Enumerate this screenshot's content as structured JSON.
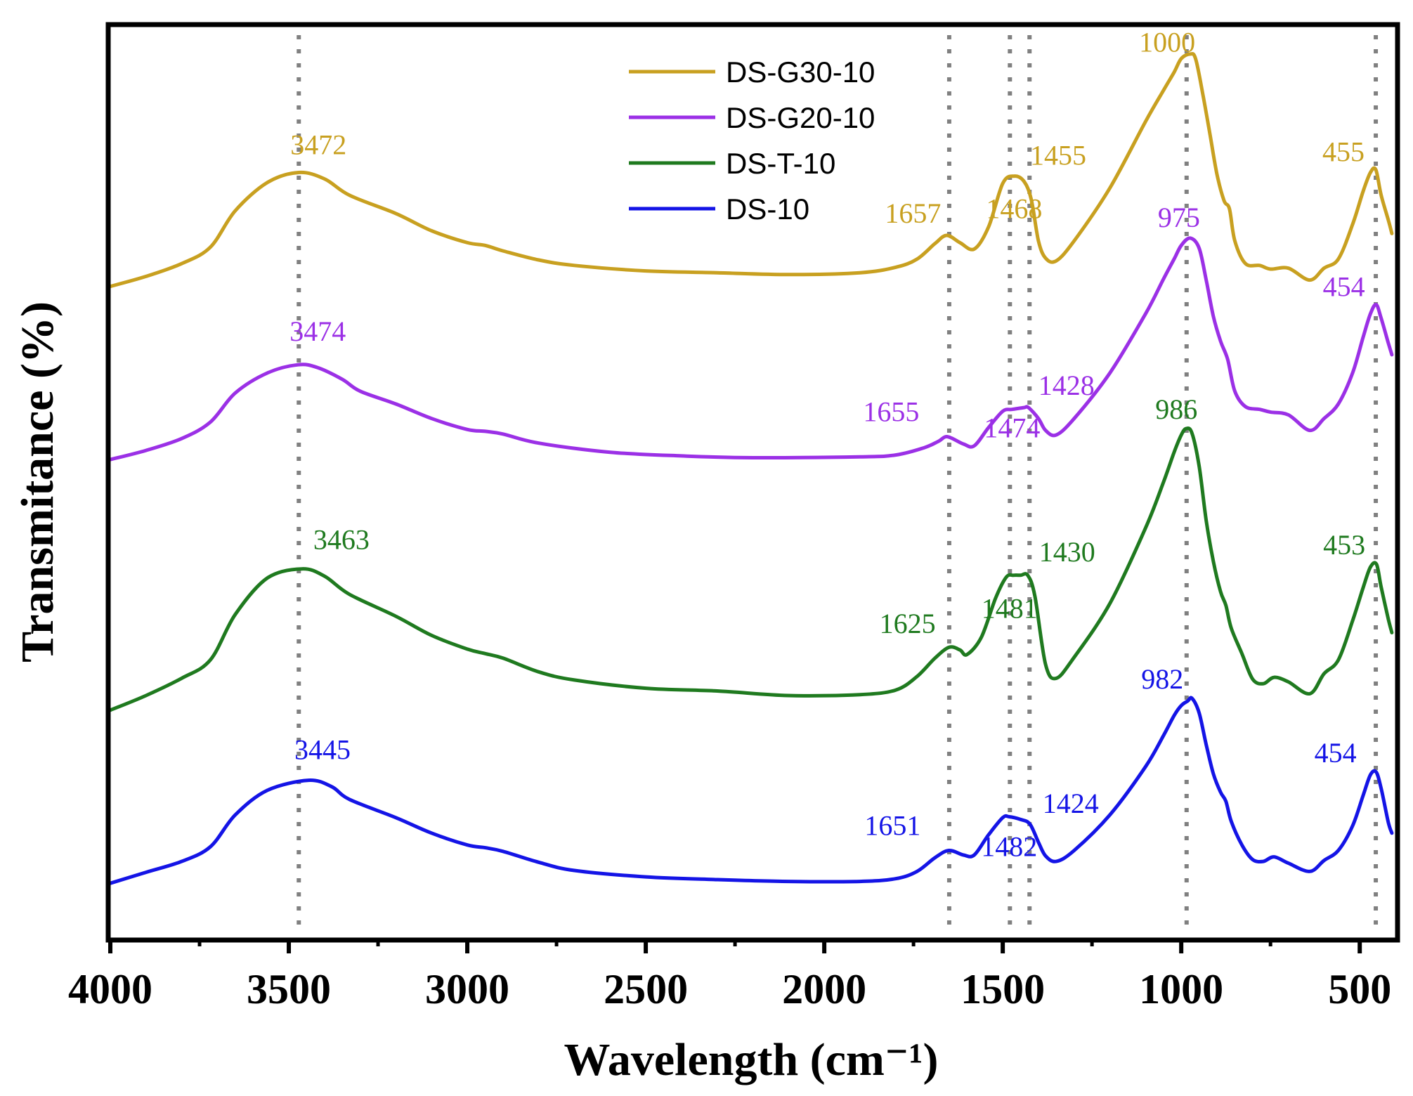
{
  "chart_data": {
    "type": "line",
    "title": "",
    "xlabel": "Wavelength (cm⁻¹)",
    "ylabel": "Transmitance (%)",
    "xlim": [
      4000,
      400
    ],
    "ylim": [
      0,
      100
    ],
    "x_ticks": [
      {
        "value": 4000,
        "label": "4000"
      },
      {
        "value": 3500,
        "label": "3500"
      },
      {
        "value": 3000,
        "label": "3000"
      },
      {
        "value": 2500,
        "label": "2500"
      },
      {
        "value": 2000,
        "label": "2000"
      },
      {
        "value": 1500,
        "label": "1500"
      },
      {
        "value": 1000,
        "label": "1000"
      },
      {
        "value": 500,
        "label": "500"
      }
    ],
    "legend_position": "top-center",
    "reference_lines": [
      3472,
      1650,
      1480,
      1425,
      985,
      455
    ],
    "series": [
      {
        "name": "DS-G30-10",
        "color": "#c8a020",
        "points": [
          [
            4000,
            71.5
          ],
          [
            3900,
            72.6
          ],
          [
            3800,
            74
          ],
          [
            3720,
            75.8
          ],
          [
            3650,
            79.8
          ],
          [
            3560,
            82.9
          ],
          [
            3472,
            84
          ],
          [
            3400,
            83.3
          ],
          [
            3330,
            81.5
          ],
          [
            3200,
            79.5
          ],
          [
            3100,
            77.6
          ],
          [
            3000,
            76.3
          ],
          [
            2950,
            76
          ],
          [
            2900,
            75.4
          ],
          [
            2800,
            74.4
          ],
          [
            2700,
            73.8
          ],
          [
            2500,
            73.2
          ],
          [
            2300,
            73
          ],
          [
            2100,
            72.8
          ],
          [
            1900,
            73
          ],
          [
            1800,
            73.6
          ],
          [
            1740,
            74.5
          ],
          [
            1690,
            76.2
          ],
          [
            1657,
            77.1
          ],
          [
            1620,
            76.3
          ],
          [
            1580,
            75.6
          ],
          [
            1540,
            78
          ],
          [
            1500,
            82.8
          ],
          [
            1468,
            83.6
          ],
          [
            1440,
            83
          ],
          [
            1420,
            81
          ],
          [
            1400,
            76.5
          ],
          [
            1380,
            74.6
          ],
          [
            1350,
            74.3
          ],
          [
            1300,
            76.5
          ],
          [
            1200,
            82.3
          ],
          [
            1100,
            89.6
          ],
          [
            1050,
            93
          ],
          [
            1020,
            95
          ],
          [
            1000,
            96.5
          ],
          [
            975,
            97
          ],
          [
            960,
            96.5
          ],
          [
            940,
            92.7
          ],
          [
            920,
            88.3
          ],
          [
            900,
            83.8
          ],
          [
            880,
            80.9
          ],
          [
            865,
            80
          ],
          [
            850,
            76.5
          ],
          [
            820,
            74
          ],
          [
            780,
            73.8
          ],
          [
            750,
            73.4
          ],
          [
            700,
            73.5
          ],
          [
            640,
            72.2
          ],
          [
            600,
            73.5
          ],
          [
            560,
            74.5
          ],
          [
            520,
            78.3
          ],
          [
            490,
            82
          ],
          [
            470,
            84
          ],
          [
            455,
            84.3
          ],
          [
            440,
            81.5
          ],
          [
            420,
            78.8
          ],
          [
            410,
            77.3
          ]
        ],
        "peak_labels": [
          {
            "label": "3472",
            "x": 3472
          },
          {
            "label": "1657",
            "x": 1657
          },
          {
            "label": "1468",
            "x": 1468
          },
          {
            "label": "1455",
            "x": 1455
          },
          {
            "label": "1000",
            "x": 1000
          },
          {
            "label": "455",
            "x": 455
          }
        ]
      },
      {
        "name": "DS-G20-10",
        "color": "#9b30e6",
        "points": [
          [
            4000,
            52.5
          ],
          [
            3900,
            53.5
          ],
          [
            3800,
            54.8
          ],
          [
            3720,
            56.6
          ],
          [
            3650,
            59.8
          ],
          [
            3560,
            62
          ],
          [
            3474,
            62.9
          ],
          [
            3420,
            62.6
          ],
          [
            3350,
            61.3
          ],
          [
            3300,
            60
          ],
          [
            3200,
            58.6
          ],
          [
            3100,
            57
          ],
          [
            3000,
            55.8
          ],
          [
            2950,
            55.6
          ],
          [
            2900,
            55.3
          ],
          [
            2800,
            54.3
          ],
          [
            2600,
            53.3
          ],
          [
            2400,
            52.9
          ],
          [
            2200,
            52.7
          ],
          [
            1900,
            52.8
          ],
          [
            1800,
            53
          ],
          [
            1720,
            53.8
          ],
          [
            1680,
            54.5
          ],
          [
            1655,
            55
          ],
          [
            1610,
            54.2
          ],
          [
            1580,
            54
          ],
          [
            1540,
            56
          ],
          [
            1500,
            57.8
          ],
          [
            1474,
            58
          ],
          [
            1440,
            58.2
          ],
          [
            1428,
            58.2
          ],
          [
            1400,
            57
          ],
          [
            1380,
            55.7
          ],
          [
            1350,
            55.2
          ],
          [
            1300,
            57
          ],
          [
            1200,
            62
          ],
          [
            1100,
            68.5
          ],
          [
            1050,
            72.3
          ],
          [
            1020,
            74.5
          ],
          [
            1000,
            76
          ],
          [
            975,
            76.8
          ],
          [
            950,
            75.7
          ],
          [
            930,
            72.2
          ],
          [
            910,
            68.2
          ],
          [
            890,
            65.5
          ],
          [
            870,
            63.5
          ],
          [
            850,
            60
          ],
          [
            820,
            58.3
          ],
          [
            780,
            58
          ],
          [
            750,
            57.7
          ],
          [
            700,
            57.4
          ],
          [
            640,
            55.7
          ],
          [
            600,
            57
          ],
          [
            560,
            58.6
          ],
          [
            520,
            62
          ],
          [
            490,
            66
          ],
          [
            470,
            68.5
          ],
          [
            454,
            69.5
          ],
          [
            440,
            68
          ],
          [
            420,
            65.3
          ],
          [
            410,
            64
          ]
        ],
        "peak_labels": [
          {
            "label": "3474",
            "x": 3474
          },
          {
            "label": "1655",
            "x": 1655
          },
          {
            "label": "1474",
            "x": 1474
          },
          {
            "label": "1428",
            "x": 1428
          },
          {
            "label": "975",
            "x": 975
          },
          {
            "label": "454",
            "x": 454
          }
        ]
      },
      {
        "name": "DS-T-10",
        "color": "#1f7a1f",
        "points": [
          [
            4000,
            25
          ],
          [
            3900,
            26.6
          ],
          [
            3800,
            28.5
          ],
          [
            3720,
            30.5
          ],
          [
            3650,
            35.5
          ],
          [
            3560,
            39.5
          ],
          [
            3463,
            40.5
          ],
          [
            3400,
            39.7
          ],
          [
            3330,
            37.7
          ],
          [
            3200,
            35.3
          ],
          [
            3100,
            33.2
          ],
          [
            3000,
            31.7
          ],
          [
            2950,
            31.2
          ],
          [
            2900,
            30.7
          ],
          [
            2800,
            29.2
          ],
          [
            2700,
            28.3
          ],
          [
            2500,
            27.4
          ],
          [
            2300,
            27.1
          ],
          [
            2100,
            26.6
          ],
          [
            1900,
            26.7
          ],
          [
            1800,
            27.2
          ],
          [
            1740,
            28.7
          ],
          [
            1690,
            30.7
          ],
          [
            1650,
            31.9
          ],
          [
            1620,
            31.6
          ],
          [
            1600,
            31.1
          ],
          [
            1560,
            33
          ],
          [
            1520,
            37.3
          ],
          [
            1490,
            39.6
          ],
          [
            1470,
            39.8
          ],
          [
            1450,
            39.8
          ],
          [
            1430,
            39.8
          ],
          [
            1410,
            37.5
          ],
          [
            1380,
            30
          ],
          [
            1350,
            28.5
          ],
          [
            1300,
            30.8
          ],
          [
            1200,
            36.7
          ],
          [
            1100,
            45
          ],
          [
            1050,
            50
          ],
          [
            1020,
            53.3
          ],
          [
            1000,
            55.2
          ],
          [
            986,
            55.9
          ],
          [
            970,
            55.4
          ],
          [
            950,
            51.8
          ],
          [
            930,
            45.8
          ],
          [
            910,
            41.3
          ],
          [
            890,
            38
          ],
          [
            875,
            36.5
          ],
          [
            860,
            34
          ],
          [
            830,
            31.2
          ],
          [
            800,
            28.4
          ],
          [
            770,
            27.9
          ],
          [
            740,
            28.6
          ],
          [
            700,
            28.1
          ],
          [
            640,
            26.8
          ],
          [
            600,
            29
          ],
          [
            560,
            30.5
          ],
          [
            520,
            34.8
          ],
          [
            490,
            38.5
          ],
          [
            470,
            40.7
          ],
          [
            453,
            41
          ],
          [
            440,
            38.5
          ],
          [
            420,
            35
          ],
          [
            410,
            33.5
          ]
        ],
        "peak_labels": [
          {
            "label": "3463",
            "x": 3463
          },
          {
            "label": "1625",
            "x": 1625
          },
          {
            "label": "1481",
            "x": 1481
          },
          {
            "label": "1430",
            "x": 1430
          },
          {
            "label": "986",
            "x": 986
          },
          {
            "label": "453",
            "x": 453
          }
        ]
      },
      {
        "name": "DS-10",
        "color": "#1414e6",
        "points": [
          [
            4000,
            6
          ],
          [
            3900,
            7.2
          ],
          [
            3800,
            8.4
          ],
          [
            3720,
            10
          ],
          [
            3650,
            13.5
          ],
          [
            3560,
            16.2
          ],
          [
            3445,
            17.3
          ],
          [
            3380,
            16.6
          ],
          [
            3330,
            15.2
          ],
          [
            3200,
            13.2
          ],
          [
            3100,
            11.5
          ],
          [
            3000,
            10.2
          ],
          [
            2950,
            9.9
          ],
          [
            2900,
            9.5
          ],
          [
            2800,
            8.3
          ],
          [
            2700,
            7.4
          ],
          [
            2500,
            6.7
          ],
          [
            2300,
            6.4
          ],
          [
            2100,
            6.2
          ],
          [
            1900,
            6.2
          ],
          [
            1800,
            6.5
          ],
          [
            1740,
            7.3
          ],
          [
            1690,
            8.8
          ],
          [
            1651,
            9.6
          ],
          [
            1610,
            9.1
          ],
          [
            1580,
            9.1
          ],
          [
            1540,
            11.3
          ],
          [
            1500,
            13.2
          ],
          [
            1482,
            13.3
          ],
          [
            1450,
            13
          ],
          [
            1424,
            12.5
          ],
          [
            1400,
            10.5
          ],
          [
            1380,
            9
          ],
          [
            1350,
            8.4
          ],
          [
            1300,
            9.6
          ],
          [
            1200,
            13.5
          ],
          [
            1100,
            18.8
          ],
          [
            1050,
            22.2
          ],
          [
            1020,
            24.4
          ],
          [
            1000,
            25.5
          ],
          [
            982,
            26
          ],
          [
            970,
            26.3
          ],
          [
            950,
            24.7
          ],
          [
            930,
            21.2
          ],
          [
            910,
            18
          ],
          [
            890,
            16
          ],
          [
            875,
            15
          ],
          [
            860,
            12.8
          ],
          [
            830,
            10.2
          ],
          [
            800,
            8.6
          ],
          [
            770,
            8.4
          ],
          [
            740,
            8.9
          ],
          [
            700,
            8.2
          ],
          [
            640,
            7.3
          ],
          [
            600,
            8.5
          ],
          [
            560,
            9.6
          ],
          [
            520,
            12.3
          ],
          [
            490,
            15.7
          ],
          [
            470,
            17.9
          ],
          [
            454,
            18.2
          ],
          [
            440,
            16.4
          ],
          [
            420,
            12.7
          ],
          [
            410,
            11.5
          ]
        ],
        "peak_labels": [
          {
            "label": "3445",
            "x": 3445
          },
          {
            "label": "1651",
            "x": 1651
          },
          {
            "label": "1482",
            "x": 1482
          },
          {
            "label": "1424",
            "x": 1424
          },
          {
            "label": "982",
            "x": 982
          },
          {
            "label": "454",
            "x": 454
          }
        ]
      }
    ]
  }
}
